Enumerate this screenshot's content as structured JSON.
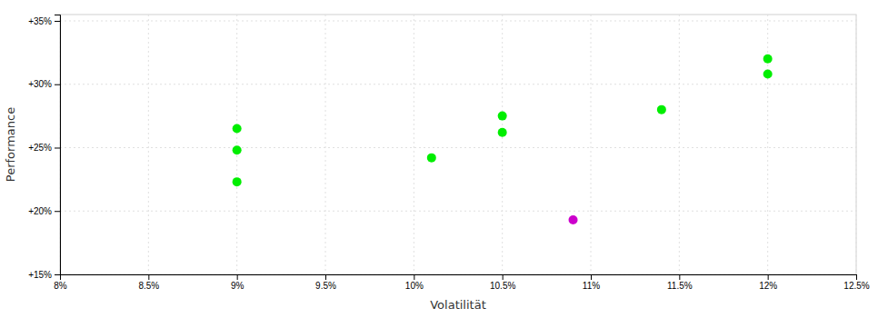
{
  "chart_data": {
    "type": "scatter",
    "xlabel": "Volatilität",
    "ylabel": "Performance",
    "xlim": [
      0.08,
      0.125
    ],
    "ylim": [
      0.15,
      0.355
    ],
    "xticks": [
      {
        "value": 0.08,
        "label": "8%"
      },
      {
        "value": 0.085,
        "label": "8.5%"
      },
      {
        "value": 0.09,
        "label": "9%"
      },
      {
        "value": 0.095,
        "label": "9.5%"
      },
      {
        "value": 0.1,
        "label": "10%"
      },
      {
        "value": 0.105,
        "label": "10.5%"
      },
      {
        "value": 0.11,
        "label": "11%"
      },
      {
        "value": 0.115,
        "label": "11.5%"
      },
      {
        "value": 0.12,
        "label": "12%"
      },
      {
        "value": 0.125,
        "label": "12.5%"
      }
    ],
    "yticks": [
      {
        "value": 0.15,
        "label": "+15%"
      },
      {
        "value": 0.2,
        "label": "+20%"
      },
      {
        "value": 0.25,
        "label": "+25%"
      },
      {
        "value": 0.3,
        "label": "+30%"
      },
      {
        "value": 0.35,
        "label": "+35%"
      }
    ],
    "grid": true,
    "series": [
      {
        "color": "#00ee00",
        "x": [
          0.09,
          0.09,
          0.09,
          0.101,
          0.105,
          0.105,
          0.114,
          0.12,
          0.12
        ],
        "values": [
          0.265,
          0.248,
          0.223,
          0.242,
          0.275,
          0.262,
          0.28,
          0.32,
          0.308
        ]
      },
      {
        "color": "#cc00cc",
        "x": [
          0.109
        ],
        "values": [
          0.193
        ]
      }
    ]
  }
}
